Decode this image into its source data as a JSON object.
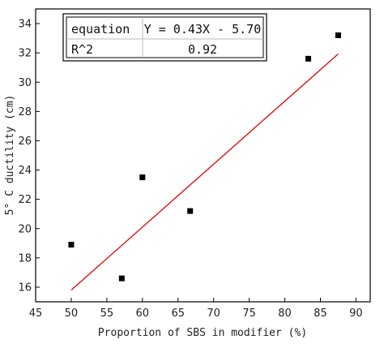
{
  "chart_data": {
    "type": "scatter",
    "title": "",
    "xlabel": "Proportion of SBS in modifier (%)",
    "ylabel": "5° C ductility (cm)",
    "xlim": [
      45,
      92
    ],
    "ylim": [
      15,
      35
    ],
    "xticks": [
      45,
      50,
      55,
      60,
      65,
      70,
      75,
      80,
      85,
      90
    ],
    "yticks": [
      16,
      18,
      20,
      22,
      24,
      26,
      28,
      30,
      32,
      34
    ],
    "grid": false,
    "legend": "none",
    "points": [
      {
        "x": 50.0,
        "y": 18.9
      },
      {
        "x": 57.1,
        "y": 16.6
      },
      {
        "x": 60.0,
        "y": 23.5
      },
      {
        "x": 66.7,
        "y": 21.2
      },
      {
        "x": 83.3,
        "y": 31.6
      },
      {
        "x": 87.5,
        "y": 33.2
      }
    ],
    "fit_line": {
      "slope": 0.43,
      "intercept": -5.7,
      "x_range": [
        50.0,
        87.5
      ],
      "color": "#e00000"
    },
    "marker_color": "#000000"
  },
  "fit_table": {
    "equation_label": "equation",
    "equation_value": "Y = 0.43X - 5.70",
    "r2_label": "R^2",
    "r2_value": "0.92"
  }
}
